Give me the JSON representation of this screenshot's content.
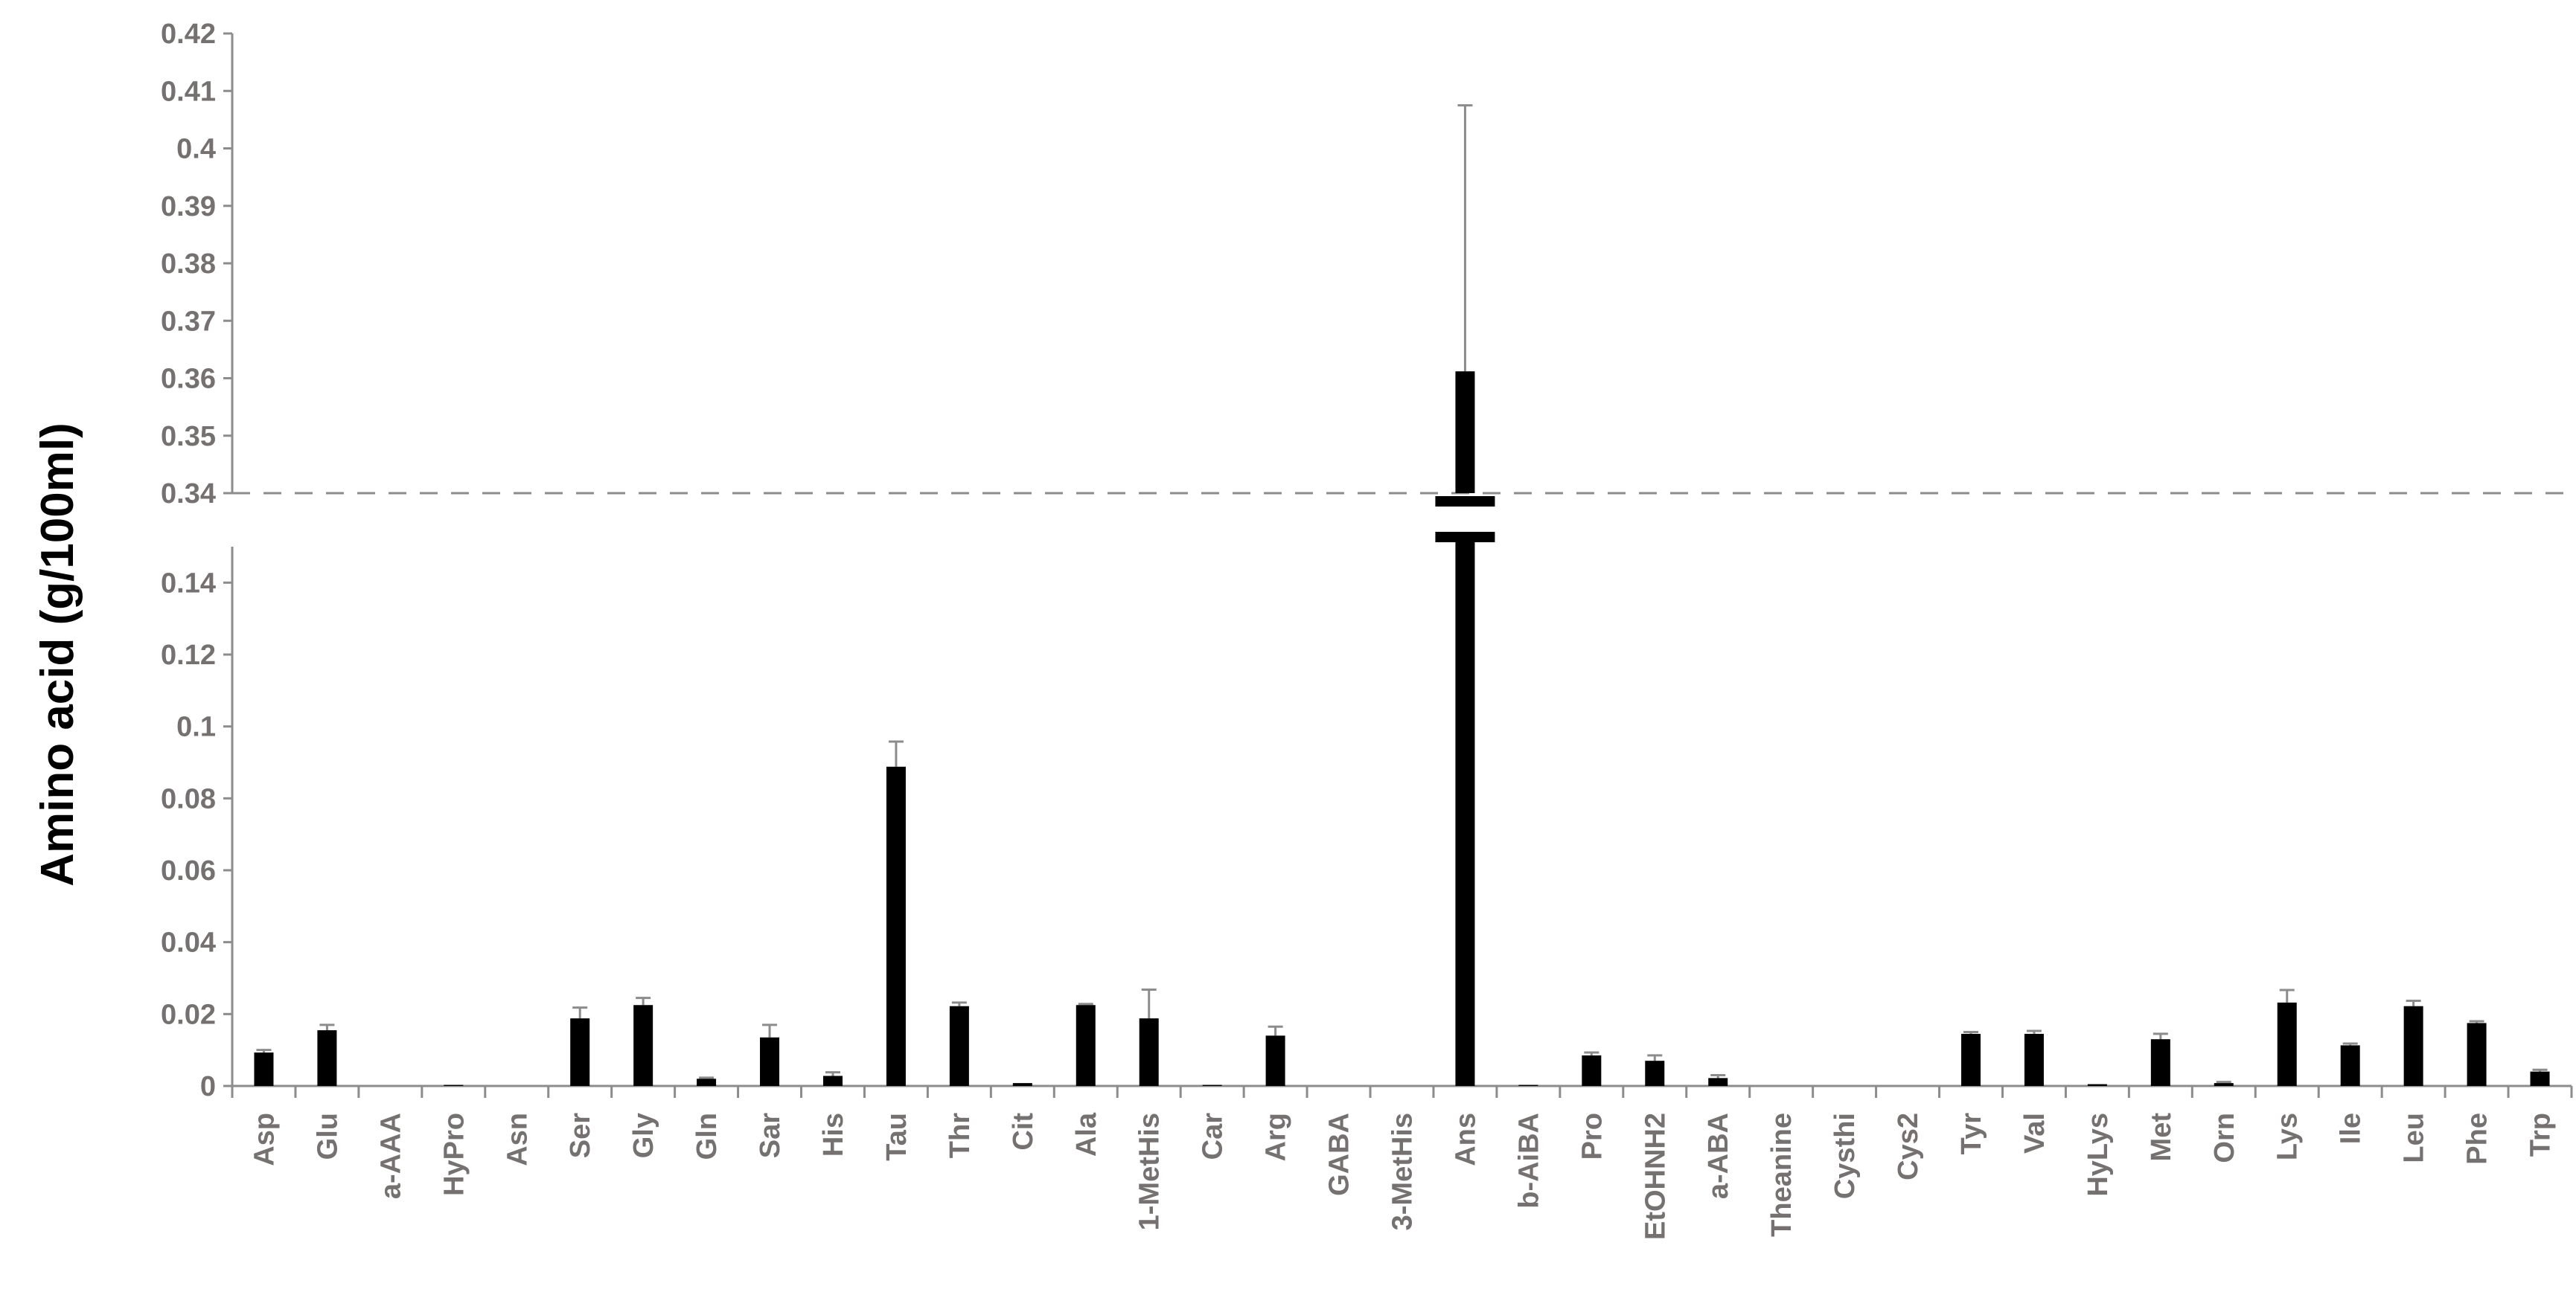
{
  "chart_data": {
    "type": "bar",
    "title": "",
    "xlabel": "",
    "ylabel": "Amino acid (g/100ml)",
    "ylim": [
      0,
      0.42
    ],
    "broken_axis": {
      "lower_range": [
        0,
        0.15
      ],
      "upper_range": [
        0.34,
        0.42
      ]
    },
    "lower_ticks": [
      "0",
      "0.02",
      "0.04",
      "0.06",
      "0.08",
      "0.1",
      "0.12",
      "0.14"
    ],
    "upper_ticks": [
      "0.34",
      "0.35",
      "0.36",
      "0.37",
      "0.38",
      "0.39",
      "0.4",
      "0.41",
      "0.42"
    ],
    "grid": false,
    "bar_color": "#000000",
    "errorbar_color": "#8c8c8c",
    "axis_color": "#8c8c8c",
    "tick_color": "#767171",
    "categories": [
      "Asp",
      "Glu",
      "a-AAA",
      "HyPro",
      "Asn",
      "Ser",
      "Gly",
      "Gln",
      "Sar",
      "His",
      "Tau",
      "Thr",
      "Cit",
      "Ala",
      "1-MetHis",
      "Car",
      "Arg",
      "GABA",
      "3-MetHis",
      "Ans",
      "b-AiBA",
      "Pro",
      "EtOHNH2",
      "a-ABA",
      "Theanine",
      "Cysthi",
      "Cys2",
      "Tyr",
      "Val",
      "HyLys",
      "Met",
      "Orn",
      "Lys",
      "Ile",
      "Leu",
      "Phe",
      "Trp"
    ],
    "values": [
      0.0093,
      0.0155,
      0,
      0.0003,
      0,
      0.0188,
      0.0225,
      0.002,
      0.0135,
      0.0028,
      0.0888,
      0.0222,
      0.0008,
      0.0225,
      0.0188,
      0.0003,
      0.014,
      0,
      0,
      0.3612,
      0.0003,
      0.0085,
      0.007,
      0.0022,
      0,
      0,
      0,
      0.0145,
      0.0145,
      0.0005,
      0.013,
      0.0008,
      0.0232,
      0.0113,
      0.0222,
      0.0175,
      0.004
    ],
    "errors": [
      0.0007,
      0.0015,
      0,
      0,
      0,
      0.003,
      0.002,
      0.0003,
      0.0035,
      0.001,
      0.007,
      0.001,
      0,
      0.0003,
      0.008,
      0,
      0.0025,
      0,
      0,
      0.0463,
      0,
      0.0008,
      0.0015,
      0.0008,
      0,
      0,
      0,
      0.0005,
      0.0008,
      0,
      0.0015,
      0.0003,
      0.0035,
      0.0005,
      0.0015,
      0.0005,
      0.0005
    ]
  }
}
